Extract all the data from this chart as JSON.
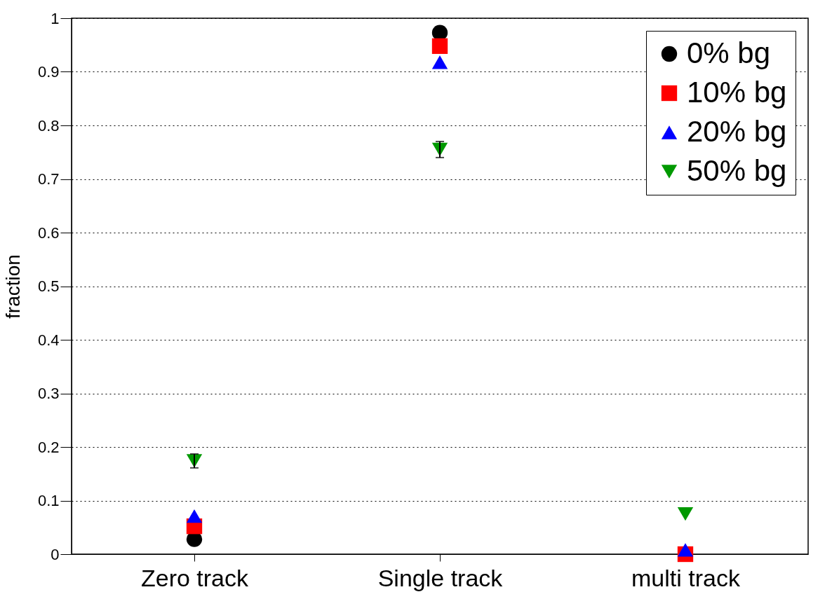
{
  "chart_data": {
    "type": "scatter",
    "ylabel": "fraction",
    "categories": [
      "Zero track",
      "Single track",
      "multi track"
    ],
    "series": [
      {
        "name": "0% bg",
        "color": "#000000",
        "marker": "circle",
        "values": [
          0.028,
          0.973,
          null
        ]
      },
      {
        "name": "10% bg",
        "color": "#ff0000",
        "marker": "square",
        "values": [
          0.052,
          0.948,
          0.0
        ]
      },
      {
        "name": "20% bg",
        "color": "#0000ff",
        "marker": "triangle",
        "values": [
          0.071,
          0.918,
          0.008
        ]
      },
      {
        "name": "50% bg",
        "color": "#009900",
        "marker": "triangle-down",
        "values": [
          0.174,
          0.755,
          0.075
        ],
        "errors": [
          0.013,
          0.015,
          null
        ]
      }
    ],
    "ylim": [
      0,
      1
    ],
    "yticks": [
      0,
      0.1,
      0.2,
      0.3,
      0.4,
      0.5,
      0.6,
      0.7,
      0.8,
      0.9,
      1
    ],
    "grid": "y",
    "legend": "top right"
  }
}
